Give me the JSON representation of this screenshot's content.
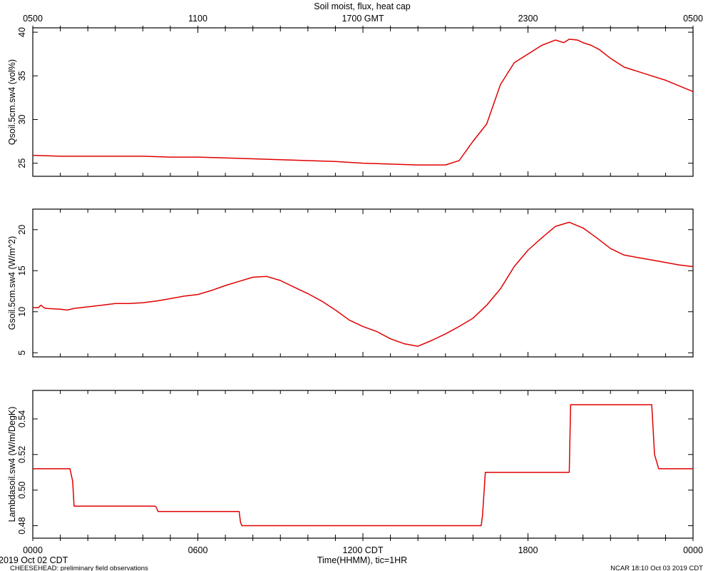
{
  "chart_data": [
    {
      "type": "line",
      "title": "Soil moist, flux, heat cap",
      "top_axis_ticks": [
        "0500",
        "1100",
        "1700 GMT",
        "2300",
        "0500"
      ],
      "ylabel": "Qsoil.5cm.sw4 (vol%)",
      "ylim": [
        23.5,
        40.5
      ],
      "yticks": [
        25,
        30,
        35,
        40
      ],
      "series_color": "#e00000",
      "x_hours": [
        0,
        1,
        2,
        3,
        4,
        5,
        6,
        7,
        8,
        9,
        10,
        11,
        12,
        13,
        14,
        15,
        15.5,
        16,
        16.5,
        17,
        17.5,
        18,
        18.5,
        19,
        19.3,
        19.5,
        19.8,
        20,
        20.3,
        20.6,
        21,
        21.5,
        22,
        22.5,
        23,
        24
      ],
      "values": [
        25.9,
        25.8,
        25.8,
        25.8,
        25.8,
        25.7,
        25.7,
        25.6,
        25.5,
        25.4,
        25.3,
        25.2,
        25.0,
        24.9,
        24.8,
        24.8,
        25.3,
        27.5,
        29.5,
        34.0,
        36.5,
        37.5,
        38.5,
        39.1,
        38.8,
        39.2,
        39.1,
        38.8,
        38.5,
        38.0,
        37.0,
        36.0,
        35.5,
        35.0,
        34.5,
        33.2
      ]
    },
    {
      "type": "line",
      "ylabel": "Gsoil.5cm.sw4 (W/m^2)",
      "ylim": [
        4.5,
        22.5
      ],
      "yticks": [
        5,
        10,
        15,
        20
      ],
      "series_color": "#e00000",
      "x_hours": [
        0,
        0.2,
        0.3,
        0.4,
        0.5,
        1,
        1.25,
        1.5,
        2,
        2.5,
        3,
        3.5,
        4,
        4.5,
        5,
        5.5,
        6,
        6.5,
        7,
        7.5,
        8,
        8.5,
        9,
        9.5,
        10,
        10.5,
        11,
        11.5,
        12,
        12.5,
        13,
        13.5,
        14,
        14.5,
        15,
        15.5,
        16,
        16.5,
        17,
        17.5,
        18,
        18.5,
        19,
        19.5,
        20,
        20.5,
        21,
        21.5,
        22,
        22.5,
        23,
        23.5,
        24
      ],
      "values": [
        10.5,
        10.5,
        10.8,
        10.5,
        10.4,
        10.3,
        10.2,
        10.4,
        10.6,
        10.8,
        11.0,
        11.0,
        11.1,
        11.3,
        11.6,
        11.9,
        12.1,
        12.6,
        13.2,
        13.7,
        14.2,
        14.3,
        13.8,
        13.0,
        12.2,
        11.3,
        10.2,
        9.0,
        8.2,
        7.6,
        6.7,
        6.1,
        5.8,
        6.5,
        7.3,
        8.2,
        9.2,
        10.8,
        12.8,
        15.5,
        17.5,
        19.0,
        20.4,
        20.9,
        20.2,
        19.0,
        17.7,
        16.9,
        16.6,
        16.3,
        16.0,
        15.7,
        15.5
      ]
    },
    {
      "type": "line",
      "ylabel": "Lambdasoil.sw4 (W/m/DegK)",
      "ylim": [
        0.473,
        0.556
      ],
      "yticks": [
        0.48,
        0.5,
        0.52,
        0.54
      ],
      "series_color": "#e00000",
      "x_hours": [
        0,
        1.35,
        1.45,
        1.5,
        4.45,
        4.5,
        4.55,
        7.5,
        7.55,
        7.6,
        16.3,
        16.35,
        16.45,
        19.5,
        19.55,
        22.5,
        22.6,
        22.75,
        24
      ],
      "values": [
        0.512,
        0.512,
        0.505,
        0.491,
        0.491,
        0.49,
        0.488,
        0.488,
        0.482,
        0.48,
        0.48,
        0.486,
        0.51,
        0.51,
        0.548,
        0.548,
        0.52,
        0.512,
        0.512
      ]
    }
  ],
  "x_axis": {
    "bottom_ticks": [
      "0000",
      "0600",
      "1200 CDT",
      "1800",
      "0000"
    ],
    "label": "Time(HHMM), tic=1HR",
    "date_label": "2019 Oct 02 CDT"
  },
  "footer": {
    "left": "CHEESEHEAD: preliminary field observations",
    "right": "NCAR 18:10 Oct 03 2019 CDT"
  }
}
